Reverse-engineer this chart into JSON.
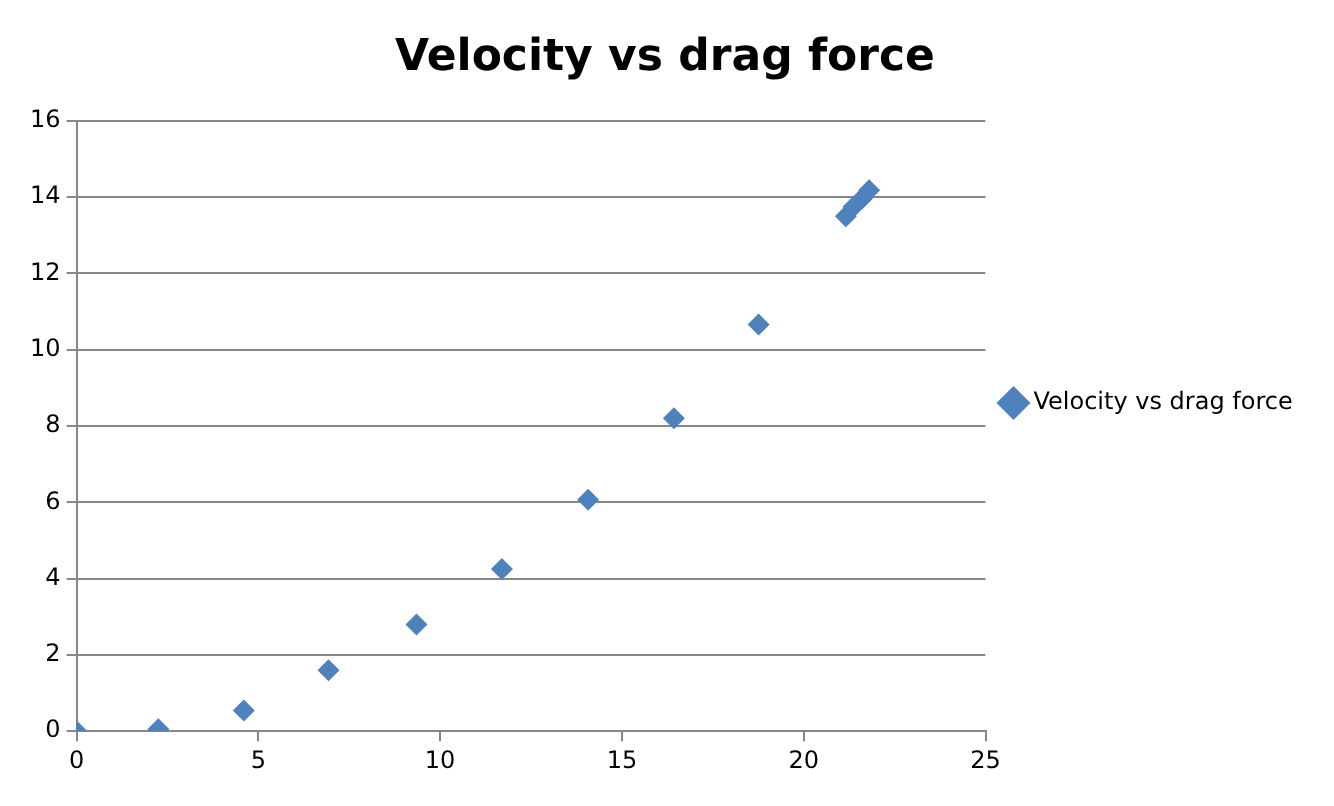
{
  "chart_data": {
    "type": "scatter",
    "title": "Velocity vs drag force",
    "series": [
      {
        "name": "Velocity vs drag force",
        "color": "#4f81bd",
        "x": [
          0,
          2.25,
          4.6,
          6.93,
          9.35,
          11.7,
          14.07,
          16.43,
          18.76,
          21.16,
          21.37,
          21.6,
          21.8
        ],
        "values": [
          0,
          0.05,
          0.54,
          1.6,
          2.8,
          4.25,
          6.07,
          8.2,
          10.66,
          13.5,
          13.75,
          13.96,
          14.18
        ]
      }
    ],
    "xlim": [
      0,
      25
    ],
    "xticks": [
      0,
      5,
      10,
      15,
      20,
      25
    ],
    "ylim": [
      0,
      16
    ],
    "yticks": [
      0,
      2,
      4,
      6,
      8,
      10,
      12,
      14,
      16
    ],
    "grid": "y",
    "legend": "right",
    "marker": "diamond"
  }
}
